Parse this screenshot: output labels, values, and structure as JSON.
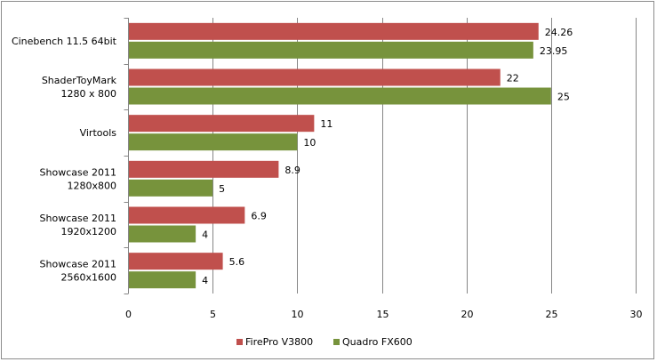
{
  "chart_data": {
    "type": "bar",
    "orientation": "horizontal",
    "categories": [
      [
        "Cinebench 11.5 64bit"
      ],
      [
        "ShaderToyMark",
        "1280 x 800"
      ],
      [
        "Virtools"
      ],
      [
        "Showcase 2011",
        "1280x800"
      ],
      [
        "Showcase 2011",
        "1920x1200"
      ],
      [
        "Showcase 2011",
        "2560x1600"
      ]
    ],
    "series": [
      {
        "name": "FirePro V3800",
        "color": "#c0504d",
        "values": [
          24.26,
          22,
          11,
          8.9,
          6.9,
          5.6
        ],
        "labels": [
          "24.26",
          "22",
          "11",
          "8.9",
          "6.9",
          "5.6"
        ]
      },
      {
        "name": "Quadro FX600",
        "color": "#77933c",
        "values": [
          23.95,
          25,
          10,
          5,
          4,
          4
        ],
        "labels": [
          "23.95",
          "25",
          "10",
          "5",
          "4",
          "4"
        ]
      }
    ],
    "xlim": [
      0,
      30
    ],
    "xticks": [
      0,
      5,
      10,
      15,
      20,
      25,
      30
    ],
    "grid": true,
    "legend": "bottom-center"
  }
}
